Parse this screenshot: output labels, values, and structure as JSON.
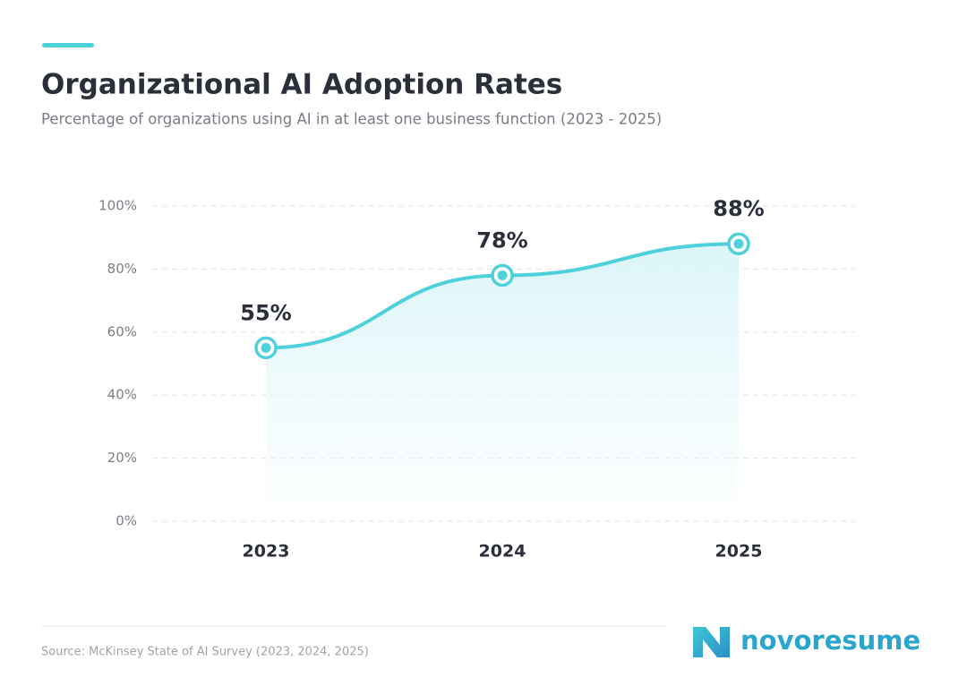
{
  "chart_data": {
    "type": "line",
    "title": "Organizational AI Adoption Rates",
    "subtitle": "Percentage of organizations using AI in at least one business function (2023 - 2025)",
    "categories": [
      "2023",
      "2024",
      "2025"
    ],
    "values": [
      55,
      78,
      88
    ],
    "value_labels": [
      "55%",
      "78%",
      "88%"
    ],
    "color": "#4fd1db",
    "ylim": [
      0,
      100
    ],
    "yticks": [
      {
        "value": 0,
        "label": "0%"
      },
      {
        "value": 20,
        "label": "20%"
      },
      {
        "value": 40,
        "label": "40%"
      },
      {
        "value": 60,
        "label": "60%"
      },
      {
        "value": 80,
        "label": "80%"
      },
      {
        "value": 100,
        "label": "100%"
      }
    ],
    "grid": true,
    "source": "Source: McKinsey State of AI Survey (2023, 2024, 2025)",
    "brand": "novoresume"
  }
}
